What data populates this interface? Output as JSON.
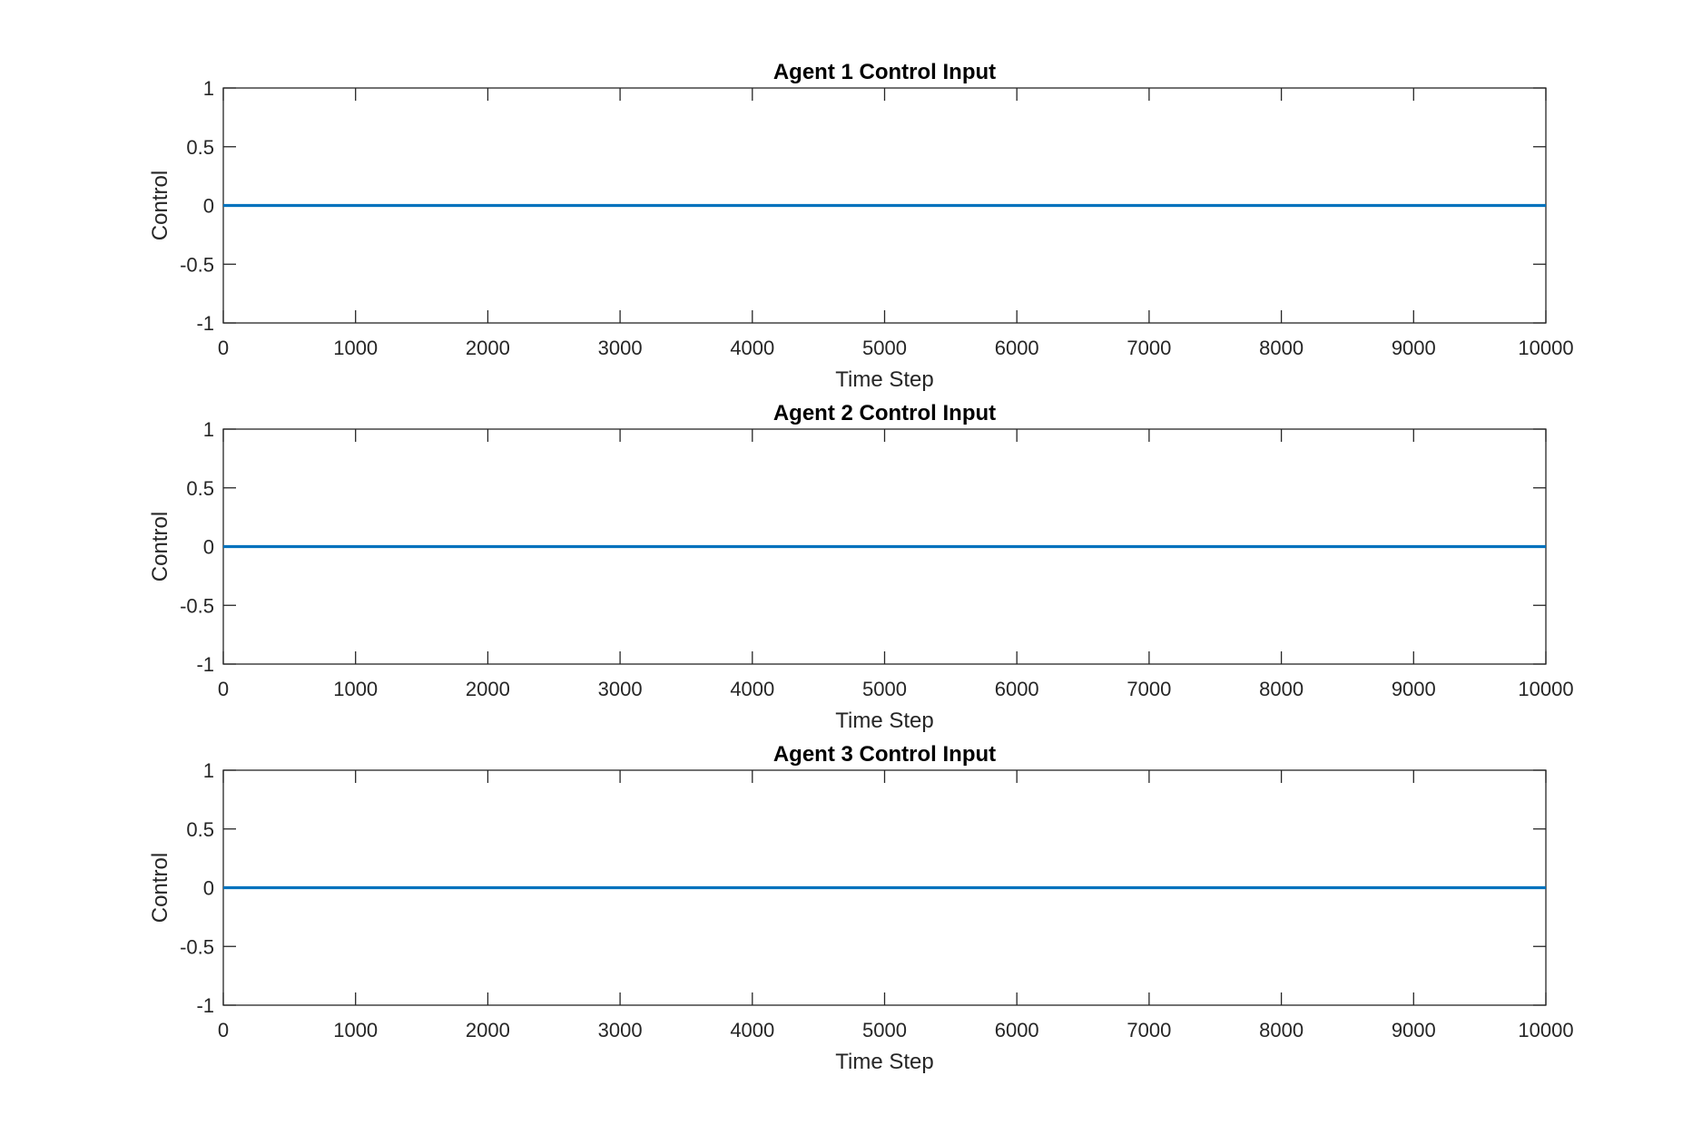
{
  "chart_data": [
    {
      "type": "line",
      "title": "Agent 1 Control Input",
      "xlabel": "Time Step",
      "ylabel": "Control",
      "xlim": [
        0,
        10000
      ],
      "ylim": [
        -1,
        1
      ],
      "xticks": [
        0,
        1000,
        2000,
        3000,
        4000,
        5000,
        6000,
        7000,
        8000,
        9000,
        10000
      ],
      "yticks": [
        -1,
        -0.5,
        0,
        0.5,
        1
      ],
      "grid": false,
      "series": [
        {
          "x": [
            0,
            10000
          ],
          "y": [
            0,
            0
          ],
          "color": "#0072BD"
        }
      ]
    },
    {
      "type": "line",
      "title": "Agent 2 Control Input",
      "xlabel": "Time Step",
      "ylabel": "Control",
      "xlim": [
        0,
        10000
      ],
      "ylim": [
        -1,
        1
      ],
      "xticks": [
        0,
        1000,
        2000,
        3000,
        4000,
        5000,
        6000,
        7000,
        8000,
        9000,
        10000
      ],
      "yticks": [
        -1,
        -0.5,
        0,
        0.5,
        1
      ],
      "grid": false,
      "series": [
        {
          "x": [
            0,
            10000
          ],
          "y": [
            0,
            0
          ],
          "color": "#0072BD"
        }
      ]
    },
    {
      "type": "line",
      "title": "Agent 3 Control Input",
      "xlabel": "Time Step",
      "ylabel": "Control",
      "xlim": [
        0,
        10000
      ],
      "ylim": [
        -1,
        1
      ],
      "xticks": [
        0,
        1000,
        2000,
        3000,
        4000,
        5000,
        6000,
        7000,
        8000,
        9000,
        10000
      ],
      "yticks": [
        -1,
        -0.5,
        0,
        0.5,
        1
      ],
      "grid": false,
      "series": [
        {
          "x": [
            0,
            10000
          ],
          "y": [
            0,
            0
          ],
          "color": "#0072BD"
        }
      ]
    }
  ],
  "colors": {
    "axis": "#262626",
    "line": "#0072BD",
    "background": "#ffffff"
  }
}
